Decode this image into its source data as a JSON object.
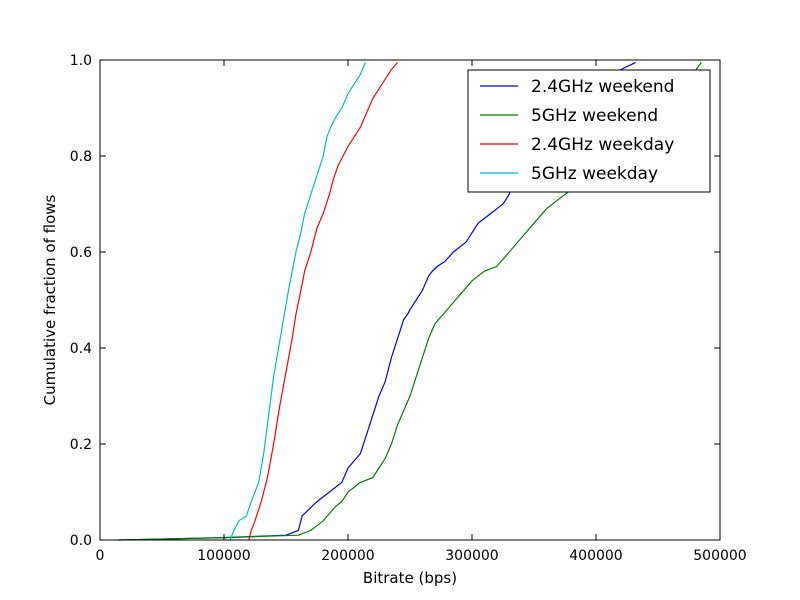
{
  "chart_data": {
    "type": "line",
    "title": "",
    "xlabel": "Bitrate (bps)",
    "ylabel": "Cumulative fraction of flows",
    "xlim": [
      0,
      500000
    ],
    "ylim": [
      0.0,
      1.0
    ],
    "xticks": [
      0,
      100000,
      200000,
      300000,
      400000,
      500000
    ],
    "xtick_labels": [
      "0",
      "100000",
      "200000",
      "300000",
      "400000",
      "500000"
    ],
    "yticks": [
      0.0,
      0.2,
      0.4,
      0.6,
      0.8,
      1.0
    ],
    "ytick_labels": [
      "0.0",
      "0.2",
      "0.4",
      "0.6",
      "0.8",
      "1.0"
    ],
    "grid": false,
    "legend_position": "top-right",
    "series": [
      {
        "name": "2.4GHz weekend",
        "color": "#0000ff",
        "x": [
          15000,
          100000,
          150000,
          160000,
          163000,
          167000,
          175000,
          185000,
          195000,
          200000,
          210000,
          215000,
          220000,
          225000,
          230000,
          235000,
          240000,
          245000,
          248000,
          250000,
          255000,
          260000,
          265000,
          268000,
          272000,
          278000,
          285000,
          295000,
          300000,
          305000,
          310000,
          315000,
          320000,
          325000,
          330000,
          332000,
          335000,
          345000,
          360000,
          380000,
          400000,
          420000,
          432000
        ],
        "y": [
          0.0,
          0.005,
          0.01,
          0.02,
          0.05,
          0.06,
          0.08,
          0.1,
          0.12,
          0.15,
          0.18,
          0.22,
          0.26,
          0.3,
          0.33,
          0.38,
          0.42,
          0.46,
          0.47,
          0.48,
          0.5,
          0.52,
          0.55,
          0.56,
          0.57,
          0.58,
          0.6,
          0.62,
          0.64,
          0.66,
          0.67,
          0.68,
          0.69,
          0.7,
          0.72,
          0.74,
          0.76,
          0.8,
          0.85,
          0.9,
          0.94,
          0.98,
          0.995
        ]
      },
      {
        "name": "5GHz weekend",
        "color": "#008000",
        "x": [
          15000,
          100000,
          160000,
          170000,
          180000,
          190000,
          195000,
          200000,
          210000,
          220000,
          225000,
          230000,
          235000,
          240000,
          245000,
          250000,
          255000,
          260000,
          265000,
          270000,
          280000,
          290000,
          300000,
          310000,
          320000,
          330000,
          340000,
          350000,
          360000,
          370000,
          380000,
          400000,
          420000,
          440000,
          460000,
          475000,
          485000
        ],
        "y": [
          0.0,
          0.005,
          0.01,
          0.02,
          0.04,
          0.07,
          0.08,
          0.1,
          0.12,
          0.13,
          0.15,
          0.17,
          0.2,
          0.24,
          0.27,
          0.3,
          0.34,
          0.38,
          0.42,
          0.45,
          0.48,
          0.51,
          0.54,
          0.56,
          0.57,
          0.6,
          0.63,
          0.66,
          0.69,
          0.71,
          0.73,
          0.77,
          0.82,
          0.87,
          0.92,
          0.96,
          0.995
        ]
      },
      {
        "name": "2.4GHz weekday",
        "color": "#ff0000",
        "x": [
          120000,
          122000,
          125000,
          130000,
          135000,
          140000,
          145000,
          150000,
          155000,
          158000,
          162000,
          165000,
          170000,
          172000,
          175000,
          180000,
          185000,
          188000,
          192000,
          196000,
          200000,
          205000,
          210000,
          215000,
          220000,
          225000,
          230000,
          235000,
          240000
        ],
        "y": [
          0.0,
          0.02,
          0.04,
          0.08,
          0.13,
          0.2,
          0.28,
          0.35,
          0.42,
          0.47,
          0.52,
          0.56,
          0.6,
          0.62,
          0.65,
          0.68,
          0.72,
          0.75,
          0.78,
          0.8,
          0.82,
          0.84,
          0.86,
          0.89,
          0.92,
          0.94,
          0.96,
          0.98,
          0.995
        ]
      },
      {
        "name": "5GHz weekday",
        "color": "#00bfbf",
        "x": [
          105000,
          108000,
          112000,
          118000,
          122000,
          128000,
          132000,
          136000,
          140000,
          144000,
          148000,
          152000,
          155000,
          158000,
          162000,
          165000,
          170000,
          175000,
          180000,
          183000,
          186000,
          190000,
          195000,
          200000,
          205000,
          210000,
          214000
        ],
        "y": [
          0.0,
          0.02,
          0.04,
          0.05,
          0.08,
          0.12,
          0.18,
          0.26,
          0.34,
          0.4,
          0.46,
          0.52,
          0.56,
          0.6,
          0.64,
          0.68,
          0.72,
          0.76,
          0.8,
          0.84,
          0.86,
          0.88,
          0.9,
          0.93,
          0.95,
          0.97,
          0.995
        ]
      }
    ]
  }
}
